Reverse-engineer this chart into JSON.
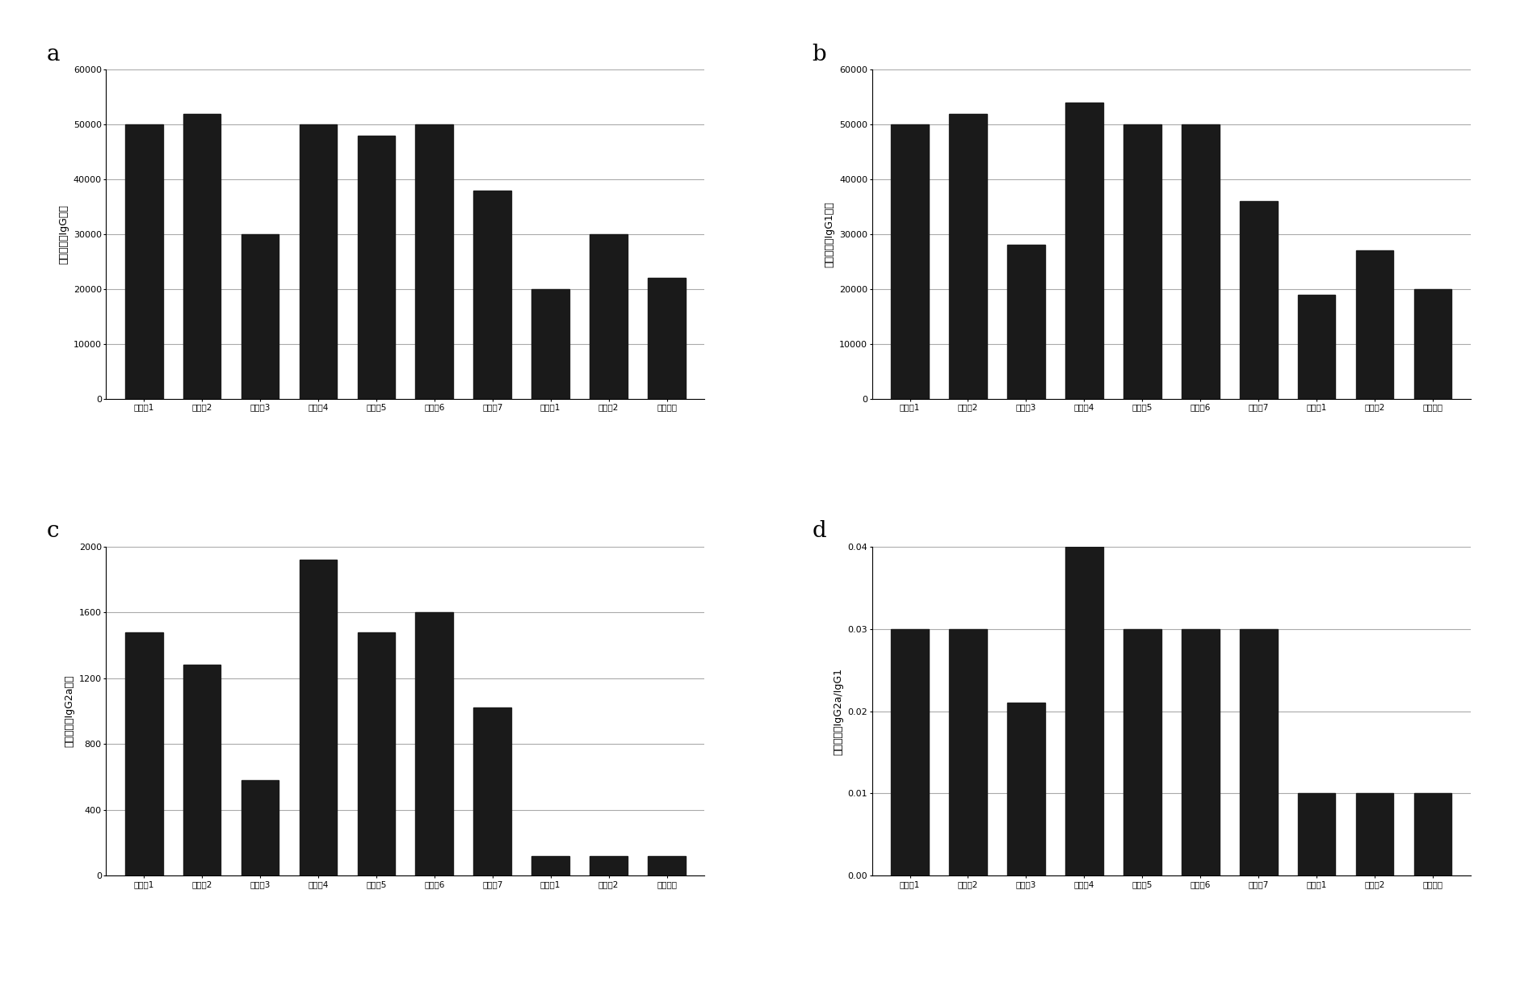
{
  "categories": [
    "实验例1",
    "实验例2",
    "实验例3",
    "实验例4",
    "实验例5",
    "实验例6",
    "实验例7",
    "对比例1",
    "对比例2",
    "阴性对照"
  ],
  "a_values": [
    50000,
    52000,
    30000,
    50000,
    48000,
    50000,
    38000,
    20000,
    30000,
    22000
  ],
  "a_ylabel": "多糖特异性IgG满度",
  "a_ylim": [
    0,
    60000
  ],
  "a_yticks": [
    0,
    10000,
    20000,
    30000,
    40000,
    50000,
    60000
  ],
  "b_values": [
    50000,
    52000,
    28000,
    54000,
    50000,
    50000,
    36000,
    19000,
    27000,
    20000
  ],
  "b_ylabel": "多糖特异性IgG1满度",
  "b_ylim": [
    0,
    60000
  ],
  "b_yticks": [
    0,
    10000,
    20000,
    30000,
    40000,
    50000,
    60000
  ],
  "c_values": [
    1480,
    1280,
    580,
    1920,
    1480,
    1600,
    1020,
    120,
    120,
    120
  ],
  "c_ylabel": "多糖特异性IgG2a满度",
  "c_ylim": [
    0,
    2000
  ],
  "c_yticks": [
    0,
    400,
    800,
    1200,
    1600,
    2000
  ],
  "d_values": [
    0.03,
    0.03,
    0.021,
    0.04,
    0.03,
    0.03,
    0.03,
    0.01,
    0.01,
    0.01
  ],
  "d_ylabel": "多糖特异性IgG2a/IgG1",
  "d_ylim": [
    0,
    0.04
  ],
  "d_yticks": [
    0,
    0.01,
    0.02,
    0.03,
    0.04
  ],
  "bar_color": "#1a1a1a",
  "bg_color": "#ffffff",
  "grid_color": "#aaaaaa",
  "subplot_labels": [
    "a",
    "b",
    "c",
    "d"
  ]
}
